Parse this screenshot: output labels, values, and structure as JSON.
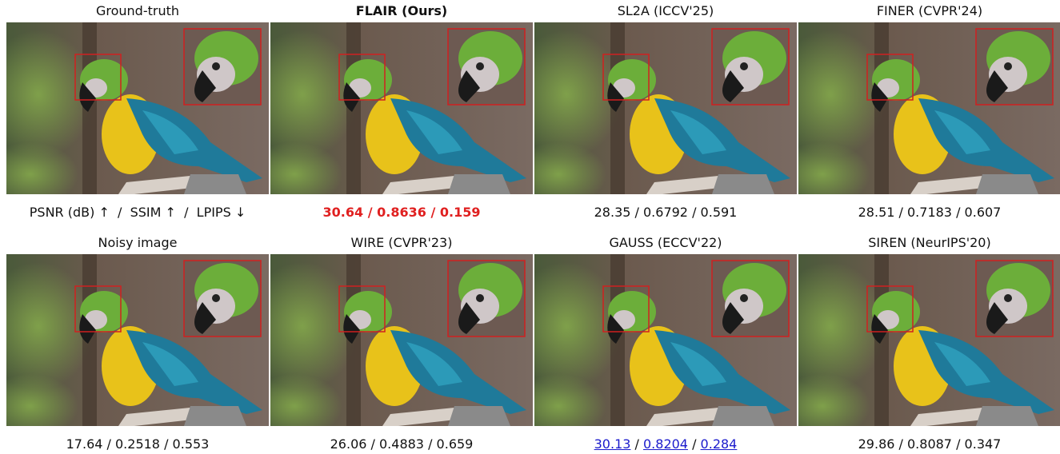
{
  "separator": " / ",
  "panels": [
    {
      "title": "Ground-truth",
      "metric_header": "PSNR (dB) ↑  /  SSIM ↑  /  LPIPS ↓"
    },
    {
      "title": "FLAIR (Ours)",
      "metrics": [
        30.64,
        0.8636,
        0.159
      ]
    },
    {
      "title": "SL2A (ICCV'25)",
      "metrics": [
        28.35,
        0.6792,
        0.591
      ]
    },
    {
      "title": "FINER (CVPR'24)",
      "metrics": [
        28.51,
        0.7183,
        0.607
      ]
    },
    {
      "title": "Noisy image",
      "metrics": [
        17.64,
        0.2518,
        0.553
      ]
    },
    {
      "title": "WIRE (CVPR'23)",
      "metrics": [
        26.06,
        0.4883,
        0.659
      ]
    },
    {
      "title": "GAUSS (ECCV'22)",
      "metrics": [
        30.13,
        0.8204,
        0.284
      ]
    },
    {
      "title": "SIREN (NeurIPS'20)",
      "metrics": [
        29.86,
        0.8087,
        0.347
      ]
    }
  ]
}
